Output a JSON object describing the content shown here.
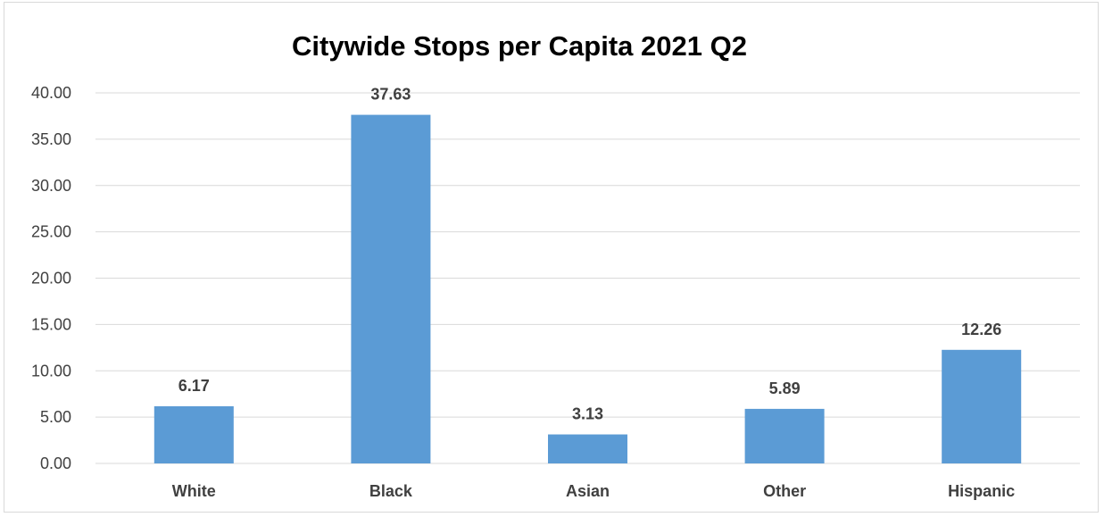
{
  "chart_data": {
    "type": "bar",
    "title": "Citywide Stops per Capita 2021 Q2",
    "categories": [
      "White",
      "Black",
      "Asian",
      "Other",
      "Hispanic"
    ],
    "values": [
      6.17,
      37.63,
      3.13,
      5.89,
      12.26
    ],
    "data_labels": [
      "6.17",
      "37.63",
      "3.13",
      "5.89",
      "12.26"
    ],
    "y_ticks": [
      "0.00",
      "5.00",
      "10.00",
      "15.00",
      "20.00",
      "25.00",
      "30.00",
      "35.00",
      "40.00"
    ],
    "ylim": [
      0,
      40
    ],
    "grid": true,
    "legend": "none",
    "bar_color": "#5b9bd5"
  }
}
